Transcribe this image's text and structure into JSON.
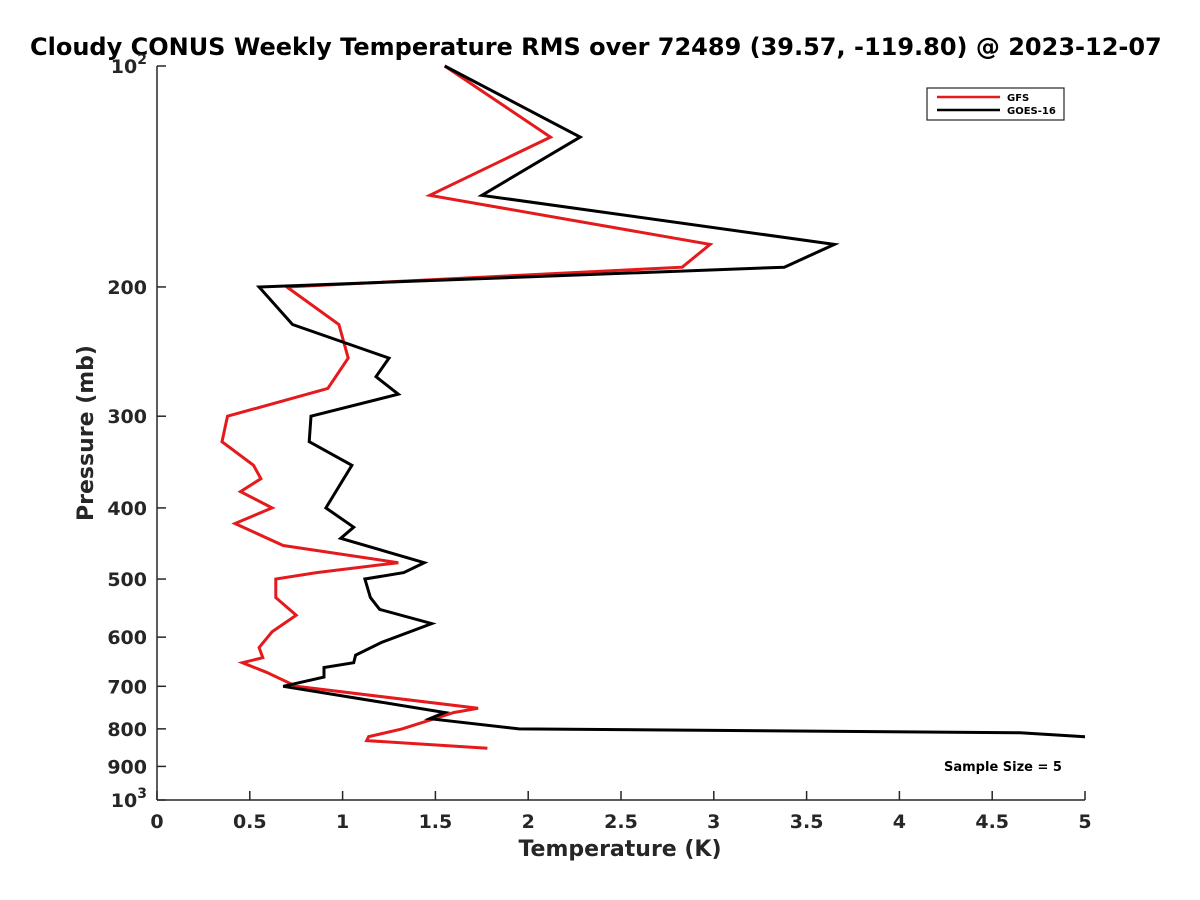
{
  "chart_data": {
    "type": "line",
    "title": "Cloudy CONUS Weekly Temperature RMS over 72489 (39.57, -119.80) @ 2023-12-07",
    "xlabel": "Temperature (K)",
    "ylabel": "Pressure (mb)",
    "xlim": [
      0,
      5
    ],
    "ylim": [
      100,
      1000
    ],
    "y_scale": "log",
    "y_reversed": true,
    "x_ticks": [
      0,
      0.5,
      1,
      1.5,
      2,
      2.5,
      3,
      3.5,
      4,
      4.5,
      5
    ],
    "x_tick_labels": [
      "0",
      "0.5",
      "1",
      "1.5",
      "2",
      "2.5",
      "3",
      "3.5",
      "4",
      "4.5",
      "5"
    ],
    "y_ticks": [
      100,
      200,
      300,
      400,
      500,
      600,
      700,
      800,
      900,
      1000
    ],
    "y_tick_labels": [
      "10^2",
      "200",
      "300",
      "400",
      "500",
      "600",
      "700",
      "800",
      "900",
      "10^3"
    ],
    "grid": false,
    "legend_position": "top-right",
    "annotation": "Sample Size = 5",
    "series": [
      {
        "name": "GFS",
        "color": "#e41a1c",
        "points": [
          [
            1.55,
            100
          ],
          [
            2.12,
            125
          ],
          [
            1.47,
            150
          ],
          [
            2.98,
            175
          ],
          [
            2.83,
            188
          ],
          [
            0.7,
            200
          ],
          [
            0.98,
            225
          ],
          [
            1.03,
            250
          ],
          [
            0.92,
            275
          ],
          [
            0.38,
            300
          ],
          [
            0.35,
            325
          ],
          [
            0.52,
            350
          ],
          [
            0.56,
            365
          ],
          [
            0.45,
            380
          ],
          [
            0.62,
            400
          ],
          [
            0.42,
            420
          ],
          [
            0.68,
            450
          ],
          [
            1.3,
            475
          ],
          [
            0.86,
            490
          ],
          [
            0.64,
            500
          ],
          [
            0.64,
            530
          ],
          [
            0.75,
            560
          ],
          [
            0.62,
            590
          ],
          [
            0.55,
            620
          ],
          [
            0.57,
            640
          ],
          [
            0.46,
            650
          ],
          [
            0.59,
            670
          ],
          [
            0.75,
            700
          ],
          [
            1.73,
            750
          ],
          [
            1.6,
            760
          ],
          [
            1.32,
            800
          ],
          [
            1.14,
            820
          ],
          [
            1.13,
            830
          ],
          [
            1.78,
            850
          ]
        ]
      },
      {
        "name": "GOES-16",
        "color": "#000000",
        "points": [
          [
            1.55,
            100
          ],
          [
            2.28,
            125
          ],
          [
            1.75,
            150
          ],
          [
            3.65,
            175
          ],
          [
            3.38,
            188
          ],
          [
            0.55,
            200
          ],
          [
            0.73,
            225
          ],
          [
            1.25,
            250
          ],
          [
            1.18,
            265
          ],
          [
            1.3,
            280
          ],
          [
            0.83,
            300
          ],
          [
            0.82,
            325
          ],
          [
            1.05,
            350
          ],
          [
            0.91,
            400
          ],
          [
            1.06,
            425
          ],
          [
            0.99,
            440
          ],
          [
            1.44,
            475
          ],
          [
            1.33,
            490
          ],
          [
            1.12,
            500
          ],
          [
            1.15,
            530
          ],
          [
            1.2,
            550
          ],
          [
            1.48,
            575
          ],
          [
            1.21,
            610
          ],
          [
            1.07,
            635
          ],
          [
            1.06,
            650
          ],
          [
            0.9,
            660
          ],
          [
            0.9,
            680
          ],
          [
            0.68,
            700
          ],
          [
            1.55,
            760
          ],
          [
            1.47,
            775
          ],
          [
            1.95,
            800
          ],
          [
            4.65,
            810
          ],
          [
            5.0,
            820
          ]
        ]
      }
    ]
  }
}
